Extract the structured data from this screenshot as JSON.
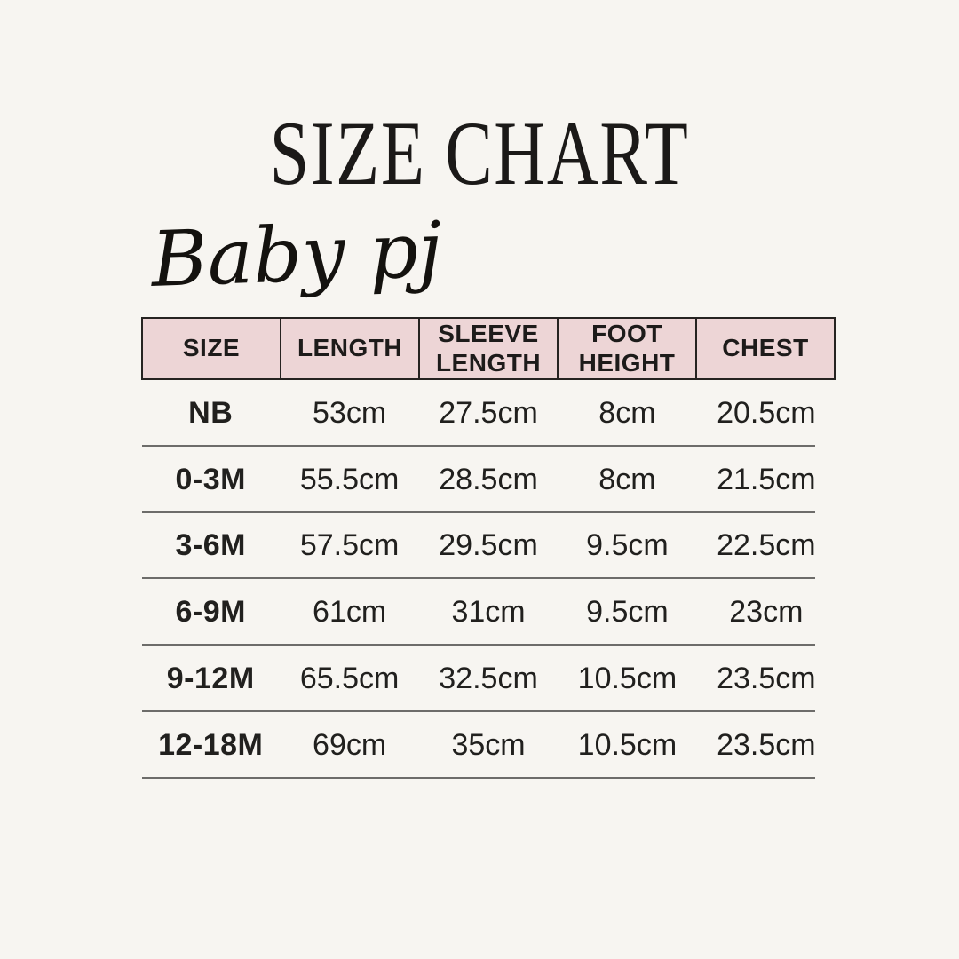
{
  "page": {
    "background_color": "#f7f5f1",
    "text_color": "#1d1b1a"
  },
  "chart_data": {
    "type": "table",
    "title": "SIZE CHART",
    "subtitle": "Baby pj",
    "unit": "cm",
    "columns": [
      "SIZE",
      "LENGTH",
      "SLEEVE LENGTH",
      "FOOT HEIGHT",
      "CHEST"
    ],
    "rows": [
      [
        "NB",
        "53cm",
        "27.5cm",
        "8cm",
        "20.5cm"
      ],
      [
        "0-3M",
        "55.5cm",
        "28.5cm",
        "8cm",
        "21.5cm"
      ],
      [
        "3-6M",
        "57.5cm",
        "29.5cm",
        "9.5cm",
        "22.5cm"
      ],
      [
        "6-9M",
        "61cm",
        "31cm",
        "9.5cm",
        "23cm"
      ],
      [
        "9-12M",
        "65.5cm",
        "32.5cm",
        "10.5cm",
        "23.5cm"
      ],
      [
        "12-18M",
        "69cm",
        "35cm",
        "10.5cm",
        "23.5cm"
      ]
    ],
    "layout": {
      "header_background": "#edd5d6",
      "header_border_color": "#262321",
      "row_divider_color": "#6d6c6a",
      "grid": "horizontal-dividers-only-in-body",
      "column_alignment": "center"
    }
  }
}
